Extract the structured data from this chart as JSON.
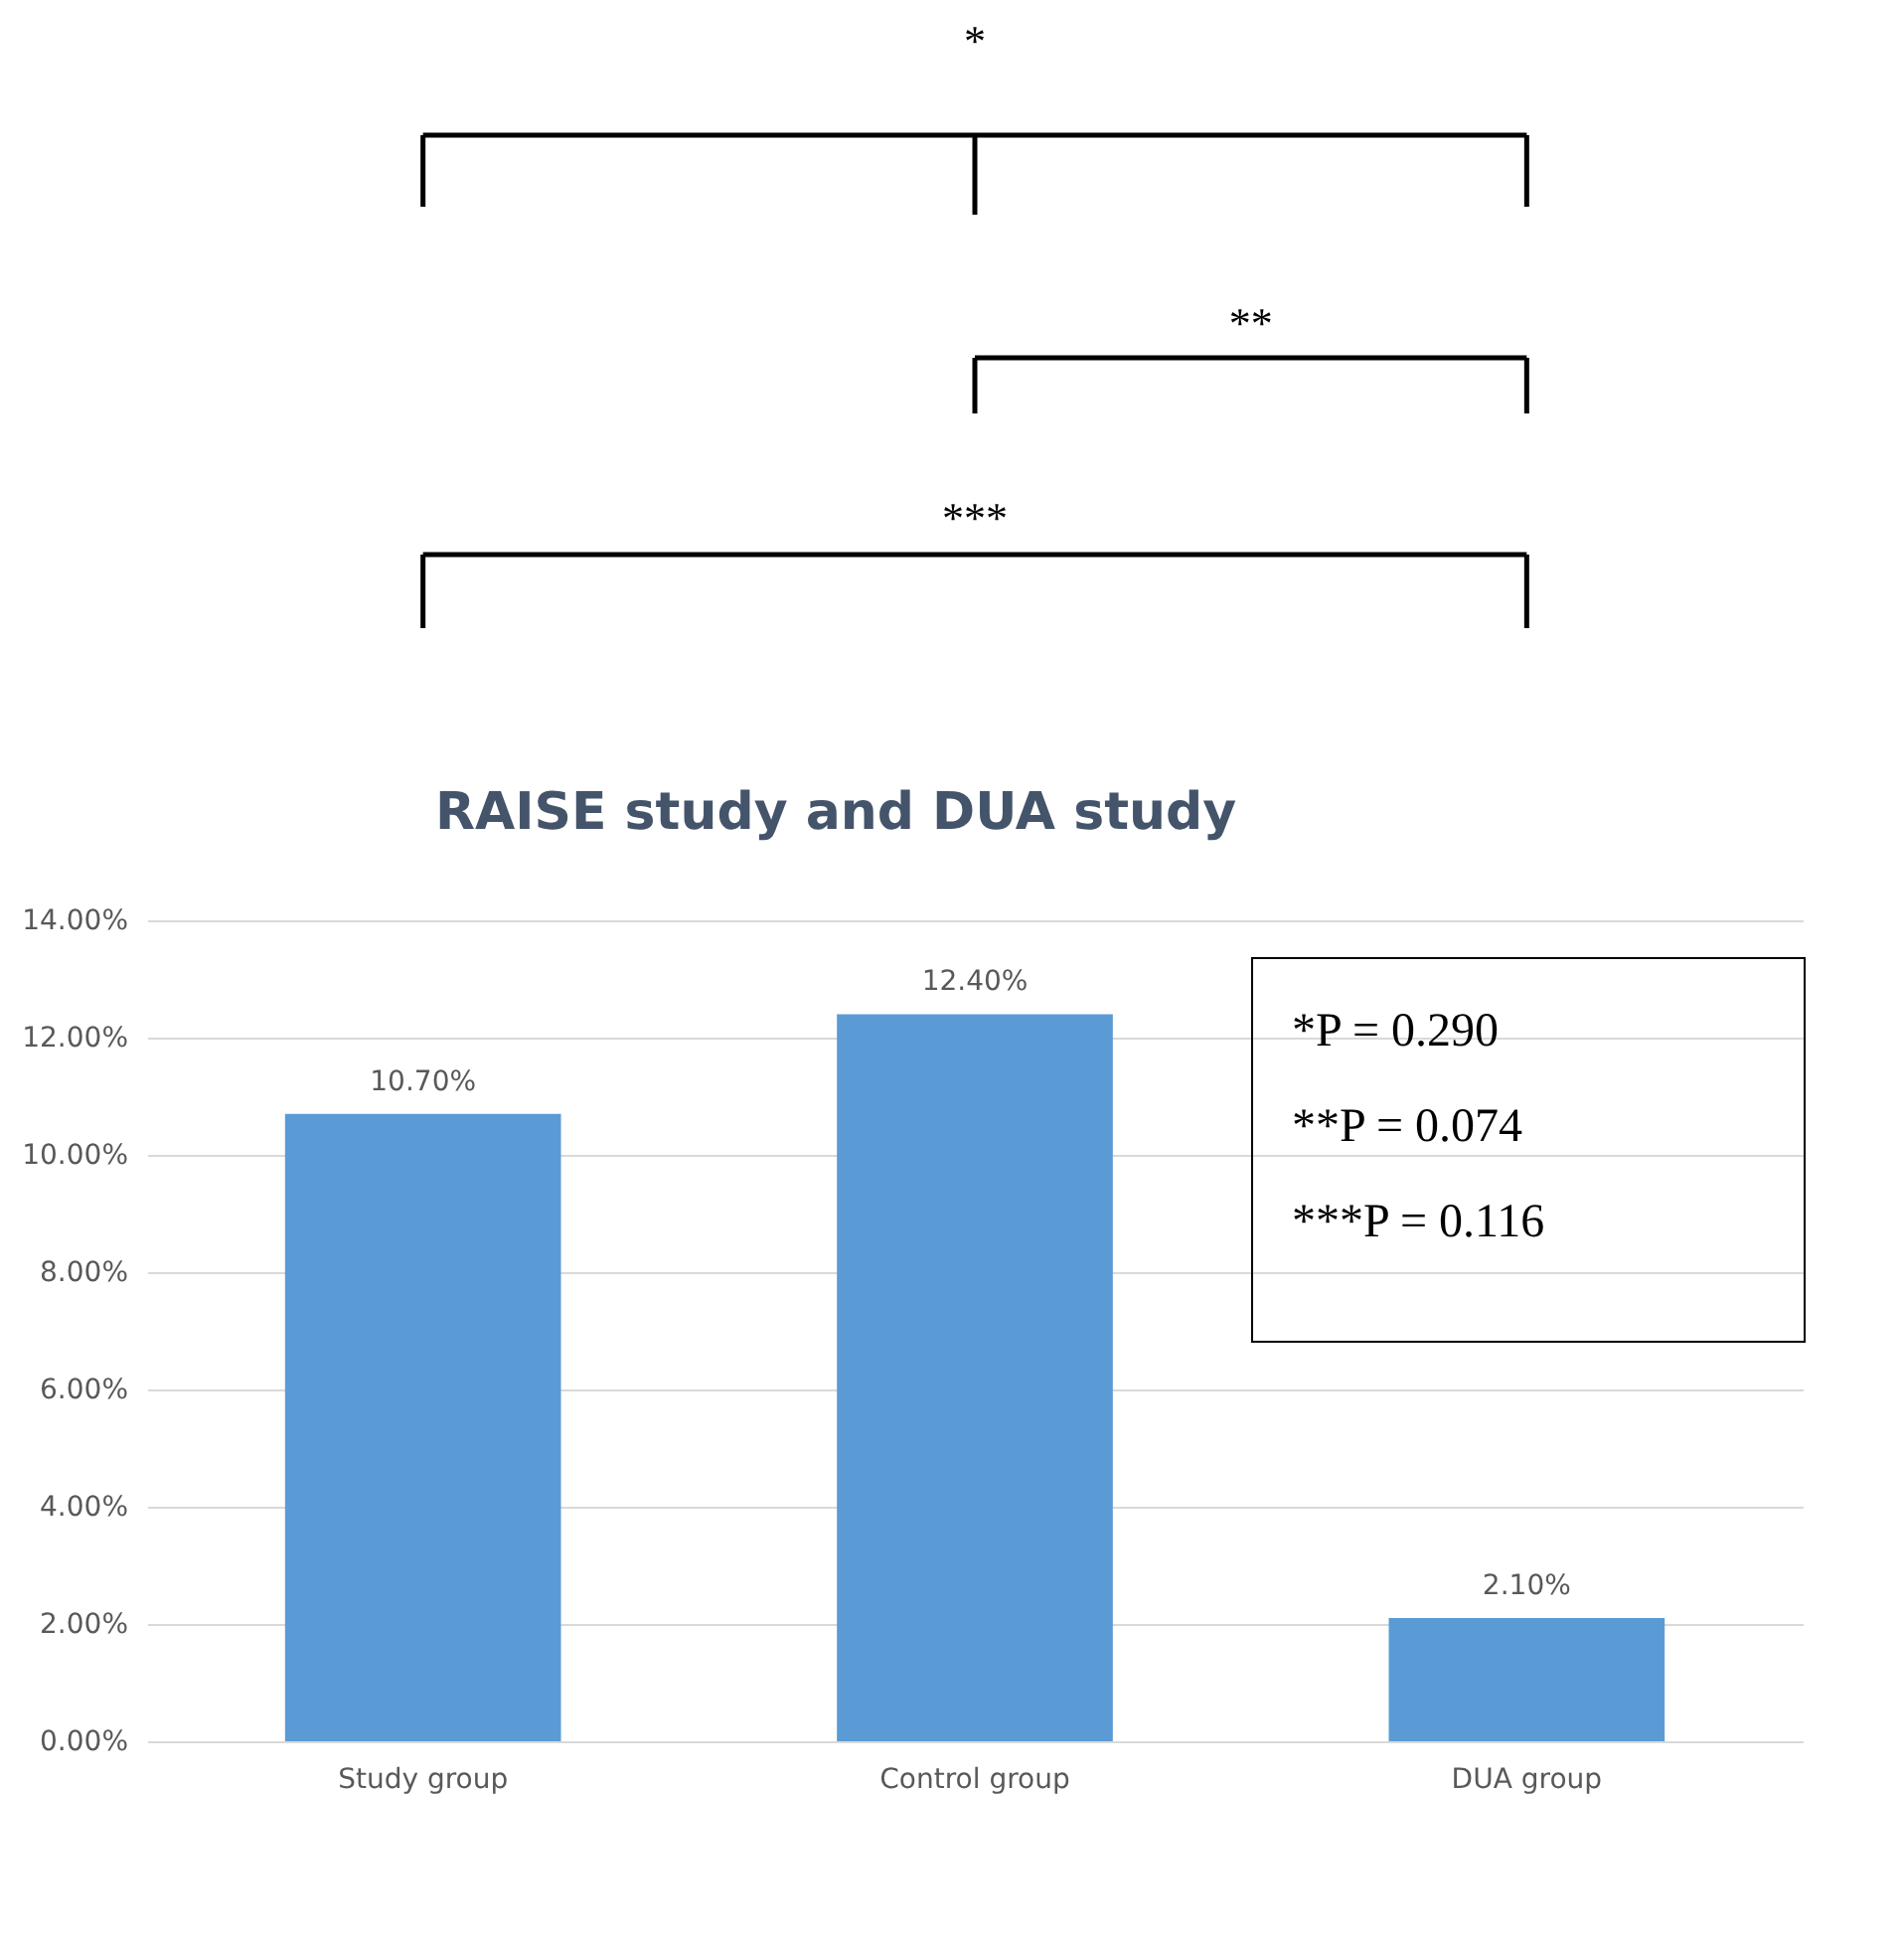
{
  "chart_data": {
    "type": "bar",
    "title": "RAISE study and DUA study",
    "categories": [
      "Study group",
      "Control group",
      "DUA group"
    ],
    "values": [
      10.7,
      12.4,
      2.1
    ],
    "value_labels": [
      "10.70%",
      "12.40%",
      "2.10%"
    ],
    "color": "#5b9bd5",
    "ylim": [
      0,
      14
    ],
    "yticks": [
      {
        "value": 0,
        "label": "0.00%"
      },
      {
        "value": 2,
        "label": "2.00%"
      },
      {
        "value": 4,
        "label": "4.00%"
      },
      {
        "value": 6,
        "label": "6.00%"
      },
      {
        "value": 8,
        "label": "8.00%"
      },
      {
        "value": 10,
        "label": "10.00%"
      },
      {
        "value": 12,
        "label": "12.00%"
      },
      {
        "value": 14,
        "label": "14.00%"
      }
    ],
    "grid": "y",
    "annotations": [
      "*",
      "**",
      "***",
      "*P = 0.290",
      "**P = 0.074",
      "***P = 0.116"
    ]
  }
}
